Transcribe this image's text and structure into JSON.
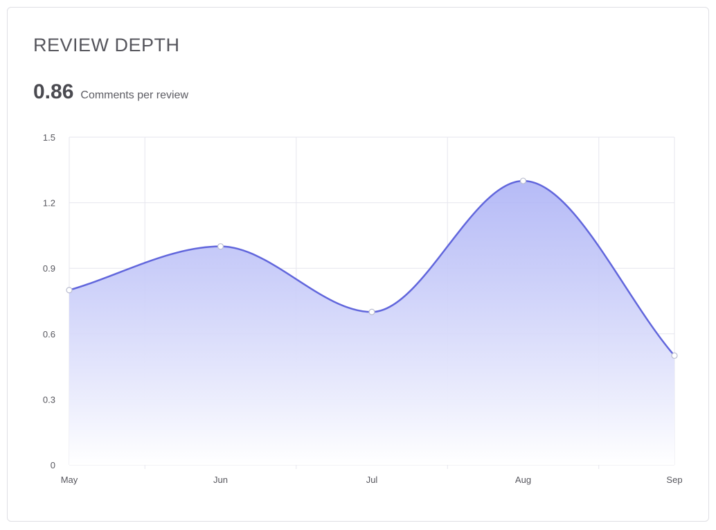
{
  "card": {
    "title": "REVIEW DEPTH",
    "metric_value": "0.86",
    "metric_unit": "Comments per review"
  },
  "chart_data": {
    "type": "line",
    "area_fill": true,
    "curve": "smooth",
    "categories": [
      "May",
      "Jun",
      "Jul",
      "Aug",
      "Sep"
    ],
    "series": [
      {
        "values": [
          0.8,
          1.0,
          0.7,
          1.3,
          0.5
        ],
        "color": "#6166dc"
      }
    ],
    "ylim": [
      0,
      1.5
    ],
    "y_ticks": [
      "0",
      "0.3",
      "0.6",
      "0.9",
      "1.2",
      "1.5"
    ],
    "grid": true,
    "legend": "none",
    "xlabel": "",
    "ylabel": ""
  },
  "colors": {
    "line": "#6166dc",
    "fill_top": "#a9aff5",
    "fill_bottom": "#ffffff",
    "grid": "#e6e6ee",
    "point_fill": "#ffffff"
  }
}
